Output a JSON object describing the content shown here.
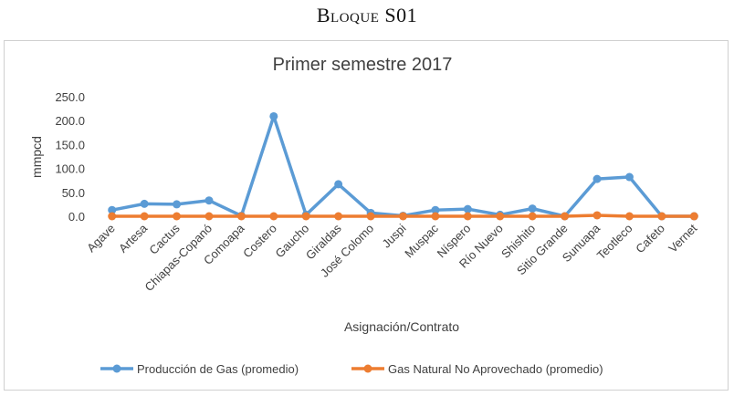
{
  "document": {
    "heading": "Bloque S01"
  },
  "chart_data": {
    "type": "line",
    "title": "Primer semestre 2017",
    "xlabel": "Asignación/Contrato",
    "ylabel": "mmpcd",
    "ylim": [
      0,
      250
    ],
    "yticks": [
      "0.0",
      "50.0",
      "100.0",
      "150.0",
      "200.0",
      "250.0"
    ],
    "grid": false,
    "legend_position": "bottom",
    "categories": [
      "Agave",
      "Artesa",
      "Cactus",
      "Chiapas-Copanó",
      "Comoapa",
      "Costero",
      "Gaucho",
      "Giraldas",
      "José Colomo",
      "Juspi",
      "Muspac",
      "Níspero",
      "Río Nuevo",
      "Shishito",
      "Sitio Grande",
      "Sunuapa",
      "Teotleco",
      "Cafeto",
      "Vernet"
    ],
    "series": [
      {
        "name": "Producción de Gas (promedio)",
        "color": "#5b9bd5",
        "values": [
          13,
          26,
          25,
          33,
          1,
          209,
          3,
          67,
          7,
          1,
          13,
          15,
          3,
          16,
          0,
          78,
          82,
          0,
          0
        ]
      },
      {
        "name": "Gas Natural No Aprovechado  (promedio)",
        "color": "#ed7d31",
        "values": [
          0,
          0,
          0,
          0,
          0,
          0,
          0,
          0,
          0,
          0,
          0,
          0,
          0,
          0,
          0,
          2,
          0,
          0,
          0
        ]
      }
    ]
  }
}
